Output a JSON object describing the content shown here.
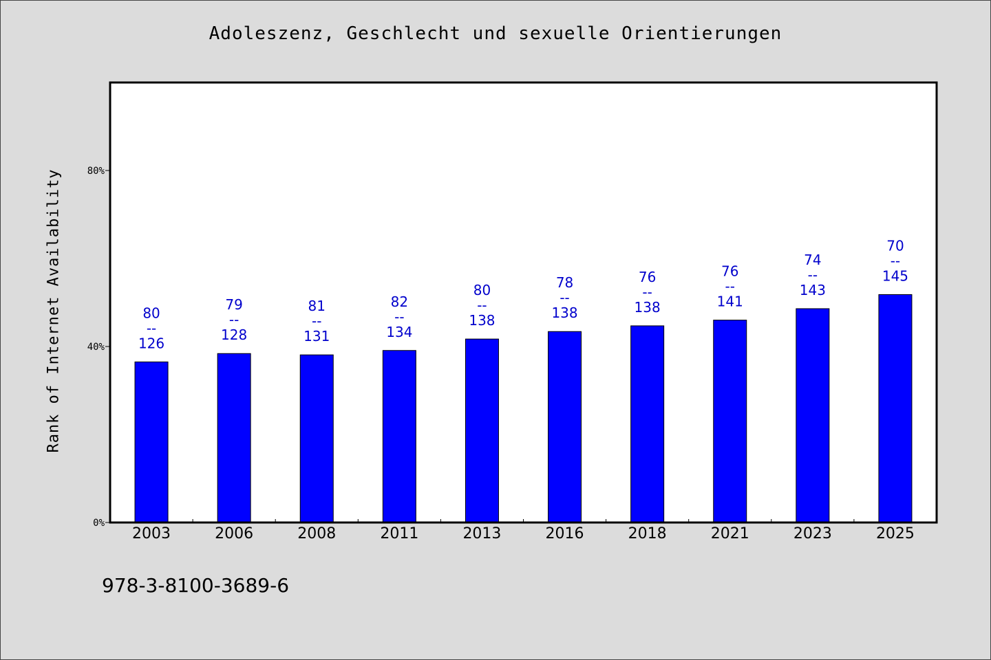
{
  "chart_data": {
    "type": "bar",
    "title": "Adoleszenz, Geschlecht und sexuelle Orientierungen",
    "ylabel": "Rank of Internet Availability",
    "xlabel": "",
    "categories": [
      "2003",
      "2006",
      "2008",
      "2011",
      "2013",
      "2016",
      "2018",
      "2021",
      "2023",
      "2025"
    ],
    "values": [
      36.5,
      38.4,
      38.1,
      39.1,
      41.7,
      43.4,
      44.7,
      46.0,
      48.6,
      51.8
    ],
    "data_labels": [
      {
        "top": "80",
        "sep": "--",
        "bottom": "126"
      },
      {
        "top": "79",
        "sep": "--",
        "bottom": "128"
      },
      {
        "top": "81",
        "sep": "--",
        "bottom": "131"
      },
      {
        "top": "82",
        "sep": "--",
        "bottom": "134"
      },
      {
        "top": "80",
        "sep": "--",
        "bottom": "138"
      },
      {
        "top": "78",
        "sep": "--",
        "bottom": "138"
      },
      {
        "top": "76",
        "sep": "--",
        "bottom": "138"
      },
      {
        "top": "76",
        "sep": "--",
        "bottom": "141"
      },
      {
        "top": "74",
        "sep": "--",
        "bottom": "143"
      },
      {
        "top": "70",
        "sep": "--",
        "bottom": "145"
      }
    ],
    "yticks": [
      {
        "value": 0,
        "label": "0%"
      },
      {
        "value": 40,
        "label": "40%"
      },
      {
        "value": 80,
        "label": "80%"
      }
    ],
    "ylim": [
      0,
      100
    ],
    "grid": false,
    "legend": "none",
    "colors": {
      "bar": "#0000ff",
      "bar_edge": "#000000",
      "data_label": "#0000cc",
      "background": "#dcdcdc",
      "plot_background": "#ffffff"
    }
  },
  "footer": {
    "isbn": "978-3-8100-3689-6"
  }
}
